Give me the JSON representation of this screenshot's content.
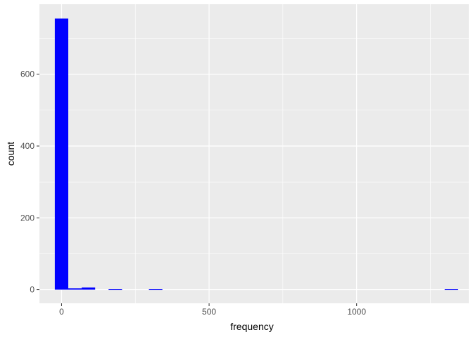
{
  "chart_data": {
    "type": "bar",
    "title": "",
    "xlabel": "frequency",
    "ylabel": "count",
    "x_ticks": [
      0,
      500,
      1000
    ],
    "y_ticks": [
      0,
      200,
      400,
      600
    ],
    "xlim": [
      -75,
      1380
    ],
    "ylim": [
      -38,
      795
    ],
    "bins": [
      {
        "x0": -22.8,
        "x1": 22.8,
        "count": 755
      },
      {
        "x0": 22.8,
        "x1": 68.3,
        "count": 4
      },
      {
        "x0": 68.3,
        "x1": 113.9,
        "count": 6
      },
      {
        "x0": 159.4,
        "x1": 205.0,
        "count": 1
      },
      {
        "x0": 296.1,
        "x1": 341.7,
        "count": 1
      },
      {
        "x0": 1298.3,
        "x1": 1343.9,
        "count": 1
      }
    ],
    "grid": true,
    "colors": {
      "bar": "#0000FF",
      "panel": "#EBEBEB",
      "grid": "#FFFFFF"
    }
  }
}
